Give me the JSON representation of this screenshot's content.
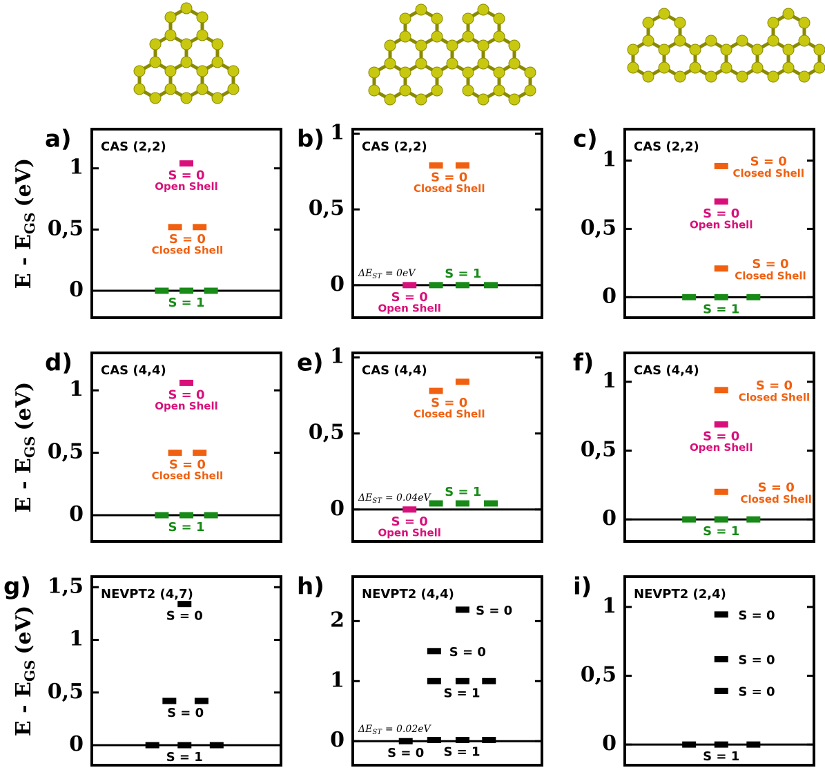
{
  "chart_data": [
    {
      "type": "levels",
      "label": "a)",
      "title": "CAS (2,2)",
      "ylabel": {
        "main": "E - E",
        "sub": "GS",
        "unit": "(eV)"
      },
      "ylim": [
        -0.22,
        1.32
      ],
      "yticks": [
        0,
        {
          "value": 0.5,
          "label": "0,5"
        },
        1
      ],
      "states": [
        {
          "name": "S = 1",
          "color": "#178a17",
          "values": [
            0,
            0,
            0
          ]
        },
        {
          "name": "S = 0",
          "detail": "Closed Shell",
          "color": "#f06010",
          "values": [
            0.52,
            0.52
          ]
        },
        {
          "name": "S = 0",
          "detail": "Open Shell",
          "color": "#d8107a",
          "values": [
            1.04
          ]
        }
      ]
    },
    {
      "type": "levels",
      "label": "b)",
      "title": "CAS (2,2)",
      "ylim": [
        -0.215,
        1.03
      ],
      "yticks": [
        0,
        {
          "value": 0.5,
          "label": "0,5"
        },
        1
      ],
      "note": {
        "main": "ΔE",
        "sub": "ST",
        "rest": "= 0eV"
      },
      "states": [
        {
          "name": "S = 0",
          "detail": "Open Shell",
          "color": "#d8107a",
          "values": [
            0
          ]
        },
        {
          "name": "S = 1",
          "color": "#178a17",
          "values": [
            0,
            0,
            0
          ]
        },
        {
          "name": "S = 0",
          "detail": "Closed Shell",
          "color": "#f06010",
          "values": [
            0.79,
            0.79
          ]
        }
      ]
    },
    {
      "type": "levels",
      "label": "c)",
      "title": "CAS (2,2)",
      "ylim": [
        -0.15,
        1.23
      ],
      "yticks": [
        0,
        {
          "value": 0.5,
          "label": "0,5"
        },
        1
      ],
      "states": [
        {
          "name": "S = 1",
          "color": "#178a17",
          "values": [
            0,
            0,
            0
          ]
        },
        {
          "name": "S = 0",
          "detail": "Closed Shell",
          "color": "#f06010",
          "values": [
            0.21
          ]
        },
        {
          "name": "S = 0",
          "detail": "Open Shell",
          "color": "#d8107a",
          "values": [
            0.7
          ]
        },
        {
          "name": "S = 0",
          "detail": "Closed Shell",
          "color": "#f06010",
          "values": [
            0.96
          ]
        }
      ]
    },
    {
      "type": "levels",
      "label": "d)",
      "title": "CAS (4,4)",
      "ylabel": {
        "main": "E - E",
        "sub": "GS",
        "unit": "(eV)"
      },
      "ylim": [
        -0.21,
        1.3
      ],
      "yticks": [
        0,
        {
          "value": 0.5,
          "label": "0,5"
        },
        1
      ],
      "states": [
        {
          "name": "S = 1",
          "color": "#178a17",
          "values": [
            0,
            0,
            0
          ]
        },
        {
          "name": "S = 0",
          "detail": "Closed Shell",
          "color": "#f06010",
          "values": [
            0.5,
            0.5
          ]
        },
        {
          "name": "S = 0",
          "detail": "Open Shell",
          "color": "#d8107a",
          "values": [
            1.06
          ]
        }
      ]
    },
    {
      "type": "levels",
      "label": "e)",
      "title": "CAS (4,4)",
      "ylim": [
        -0.21,
        1.03
      ],
      "yticks": [
        0,
        {
          "value": 0.5,
          "label": "0,5"
        },
        1
      ],
      "note": {
        "main": "ΔE",
        "sub": "ST",
        "rest": "= 0.04eV"
      },
      "states": [
        {
          "name": "S = 0",
          "detail": "Open Shell",
          "color": "#d8107a",
          "values": [
            0
          ]
        },
        {
          "name": "S = 1",
          "color": "#178a17",
          "values": [
            0.04,
            0.04,
            0.04
          ]
        },
        {
          "name": "S = 0",
          "detail": "Closed Shell",
          "color": "#f06010",
          "values": [
            0.78,
            0.84
          ]
        }
      ]
    },
    {
      "type": "levels",
      "label": "f)",
      "title": "CAS (4,4)",
      "ylim": [
        -0.16,
        1.21
      ],
      "yticks": [
        0,
        {
          "value": 0.5,
          "label": "0,5"
        },
        1
      ],
      "states": [
        {
          "name": "S = 1",
          "color": "#178a17",
          "values": [
            0,
            0,
            0
          ]
        },
        {
          "name": "S = 0",
          "detail": "Closed Shell",
          "color": "#f06010",
          "values": [
            0.2
          ]
        },
        {
          "name": "S = 0",
          "detail": "Open Shell",
          "color": "#d8107a",
          "values": [
            0.69
          ]
        },
        {
          "name": "S = 0",
          "detail": "Closed Shell",
          "color": "#f06010",
          "values": [
            0.94
          ]
        }
      ]
    },
    {
      "type": "levels",
      "label": "g)",
      "title": "NEVPT2 (4,7)",
      "ylabel": {
        "main": "E - E",
        "sub": "GS",
        "unit": "(eV)"
      },
      "ylim": [
        -0.19,
        1.6
      ],
      "yticks": [
        0,
        {
          "value": 0.5,
          "label": "0,5"
        },
        1,
        {
          "value": 1.5,
          "label": "1,5"
        }
      ],
      "states": [
        {
          "name": "S = 1",
          "color": "#000000",
          "values": [
            0,
            0,
            0
          ]
        },
        {
          "name": "S = 0",
          "color": "#000000",
          "values": [
            0.42,
            0.42
          ]
        },
        {
          "name": "S = 0",
          "color": "#000000",
          "values": [
            1.34
          ]
        }
      ]
    },
    {
      "type": "levels",
      "label": "h)",
      "title": "NEVPT2 (4,4)",
      "ylim": [
        -0.4,
        2.74
      ],
      "yticks": [
        0,
        1,
        2
      ],
      "note": {
        "main": "ΔE",
        "sub": "ST",
        "rest": "= 0.02eV"
      },
      "states": [
        {
          "name": "S = 0",
          "color": "#000000",
          "values": [
            0
          ]
        },
        {
          "name": "S = 1",
          "color": "#000000",
          "values": [
            0.02,
            0.02,
            0.02
          ]
        },
        {
          "name": "S = 1",
          "color": "#000000",
          "values": [
            1,
            1,
            1
          ]
        },
        {
          "name": "S = 0",
          "color": "#000000",
          "values": [
            1.5
          ]
        },
        {
          "name": "S = 0",
          "color": "#000000",
          "values": [
            2.19
          ]
        }
      ]
    },
    {
      "type": "levels",
      "label": "i)",
      "title": "NEVPT2 (2,4)",
      "ylim": [
        -0.15,
        1.22
      ],
      "yticks": [
        0,
        {
          "value": 0.5,
          "label": "0,5"
        },
        1
      ],
      "states": [
        {
          "name": "S = 1",
          "color": "#000000",
          "values": [
            0,
            0,
            0
          ]
        },
        {
          "name": "S = 0",
          "color": "#000000",
          "values": [
            0.39
          ]
        },
        {
          "name": "S = 0",
          "color": "#000000",
          "values": [
            0.62
          ]
        },
        {
          "name": "S = 0",
          "color": "#000000",
          "values": [
            0.945
          ]
        }
      ]
    }
  ]
}
